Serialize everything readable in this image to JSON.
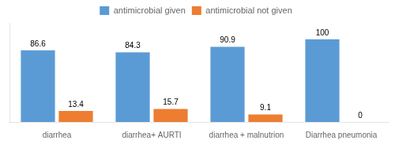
{
  "chart_data": {
    "type": "bar",
    "categories": [
      "diarrhea",
      "diarrhea+ AURTI",
      "diarrhea + malnutrion",
      "Diarrhea pneumonia"
    ],
    "series": [
      {
        "name": "antimicrobial given",
        "color": "#5b9bd5",
        "values": [
          86.6,
          84.3,
          90.9,
          100
        ]
      },
      {
        "name": "antimicrobial not given",
        "color": "#ed7d31",
        "values": [
          13.4,
          15.7,
          9.1,
          0
        ]
      }
    ],
    "ylim": [
      0,
      120
    ],
    "yticks": [],
    "grid": false,
    "legend": "top",
    "data_labels": true,
    "tick_labels": "x"
  }
}
